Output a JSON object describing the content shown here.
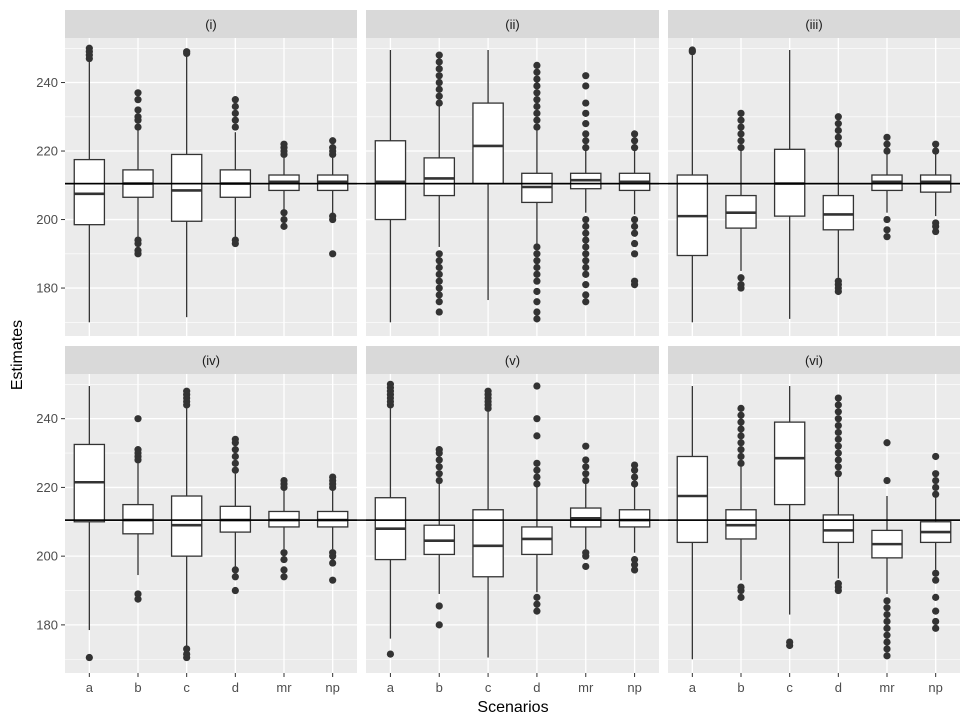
{
  "chart_data": {
    "type": "boxplot",
    "xlabel": "Scenarios",
    "ylabel": "Estimates",
    "categories": [
      "a",
      "b",
      "c",
      "d",
      "mr",
      "np"
    ],
    "ylim": [
      166,
      253
    ],
    "yticks": [
      180,
      200,
      220,
      240
    ],
    "reference_line": 210.5,
    "colors": {
      "panel_bg": "#EBEBEB",
      "grid": "#FFFFFF",
      "strip_bg": "#D9D9D9",
      "box_fill": "#FFFFFF",
      "box_line": "#333333",
      "reference": "#000000"
    },
    "panels": [
      {
        "label": "(i)",
        "boxes": [
          {
            "category": "a",
            "q1": 198.5,
            "median": 207.5,
            "q3": 217.5,
            "whisker_low": 170,
            "whisker_high": 246,
            "outliers": [
              247,
              248,
              249,
              250
            ]
          },
          {
            "category": "b",
            "q1": 206.5,
            "median": 210.5,
            "q3": 214.5,
            "whisker_low": 195,
            "whisker_high": 226,
            "outliers": [
              190,
              191,
              193,
              194,
              227,
              229,
              230,
              232,
              235,
              237
            ]
          },
          {
            "category": "c",
            "q1": 199.5,
            "median": 208.5,
            "q3": 219,
            "whisker_low": 171.5,
            "whisker_high": 248,
            "outliers": [
              248.5,
              249
            ]
          },
          {
            "category": "d",
            "q1": 206.5,
            "median": 210.5,
            "q3": 214.5,
            "whisker_low": 195,
            "whisker_high": 225.5,
            "outliers": [
              193,
              194,
              227,
              229,
              231,
              233,
              235
            ]
          },
          {
            "category": "mr",
            "q1": 208.5,
            "median": 211,
            "q3": 213,
            "whisker_low": 202,
            "whisker_high": 218,
            "outliers": [
              198,
              200,
              202,
              219,
              220,
              221,
              222
            ]
          },
          {
            "category": "np",
            "q1": 208.5,
            "median": 211,
            "q3": 213,
            "whisker_low": 202,
            "whisker_high": 218,
            "outliers": [
              190,
              200,
              201,
              219,
              220,
              221,
              223
            ]
          }
        ]
      },
      {
        "label": "(ii)",
        "boxes": [
          {
            "category": "a",
            "q1": 200,
            "median": 211,
            "q3": 223,
            "whisker_low": 170,
            "whisker_high": 249.5,
            "outliers": []
          },
          {
            "category": "b",
            "q1": 207,
            "median": 212,
            "q3": 218,
            "whisker_low": 192,
            "whisker_high": 233,
            "outliers": [
              173,
              176,
              178,
              180,
              182,
              184,
              186,
              188,
              190,
              234,
              236,
              238,
              240,
              242,
              244,
              246,
              248
            ]
          },
          {
            "category": "c",
            "q1": 210.5,
            "median": 221.5,
            "q3": 234,
            "whisker_low": 176.5,
            "whisker_high": 249.5,
            "outliers": []
          },
          {
            "category": "d",
            "q1": 205,
            "median": 209.5,
            "q3": 213.5,
            "whisker_low": 193,
            "whisker_high": 226,
            "outliers": [
              171,
              173,
              176,
              179,
              182,
              184,
              186,
              188,
              190,
              192,
              227,
              229,
              231,
              233,
              235,
              237,
              239,
              241,
              243,
              245
            ]
          },
          {
            "category": "mr",
            "q1": 209,
            "median": 211.5,
            "q3": 213.5,
            "whisker_low": 202,
            "whisker_high": 220.5,
            "outliers": [
              176,
              178,
              181,
              184,
              186,
              188,
              190,
              192,
              194,
              196,
              198,
              200,
              221,
              223,
              225,
              228,
              231,
              234,
              239,
              242
            ]
          },
          {
            "category": "np",
            "q1": 208.5,
            "median": 211,
            "q3": 213.5,
            "whisker_low": 201.5,
            "whisker_high": 220,
            "outliers": [
              181,
              182,
              190,
              193,
              196,
              198,
              200,
              221,
              223,
              225
            ]
          }
        ]
      },
      {
        "label": "(iii)",
        "boxes": [
          {
            "category": "a",
            "q1": 189.5,
            "median": 201,
            "q3": 213,
            "whisker_low": 170,
            "whisker_high": 248,
            "outliers": [
              249,
              249.5
            ]
          },
          {
            "category": "b",
            "q1": 197.5,
            "median": 202,
            "q3": 207,
            "whisker_low": 185,
            "whisker_high": 220,
            "outliers": [
              180,
              181,
              183,
              221,
              223,
              225,
              227,
              229,
              231
            ]
          },
          {
            "category": "c",
            "q1": 201,
            "median": 210.5,
            "q3": 220.5,
            "whisker_low": 171,
            "whisker_high": 249.5,
            "outliers": []
          },
          {
            "category": "d",
            "q1": 197,
            "median": 201.5,
            "q3": 207,
            "whisker_low": 183,
            "whisker_high": 221,
            "outliers": [
              179,
              180,
              181,
              182,
              222,
              224,
              226,
              228,
              230
            ]
          },
          {
            "category": "mr",
            "q1": 208.5,
            "median": 211,
            "q3": 213,
            "whisker_low": 202,
            "whisker_high": 219.5,
            "outliers": [
              195,
              197,
              200,
              220,
              222,
              224
            ]
          },
          {
            "category": "np",
            "q1": 208,
            "median": 211,
            "q3": 213,
            "whisker_low": 201,
            "whisker_high": 219.5,
            "outliers": [
              196.5,
              198,
              199,
              220,
              222
            ]
          }
        ]
      },
      {
        "label": "(iv)",
        "boxes": [
          {
            "category": "a",
            "q1": 210,
            "median": 221.5,
            "q3": 232.5,
            "whisker_low": 178.5,
            "whisker_high": 249.5,
            "outliers": [
              170.5
            ]
          },
          {
            "category": "b",
            "q1": 206.5,
            "median": 210.5,
            "q3": 215,
            "whisker_low": 194.5,
            "whisker_high": 227,
            "outliers": [
              187.5,
              189,
              228,
              229,
              230,
              231,
              240
            ]
          },
          {
            "category": "c",
            "q1": 200,
            "median": 209,
            "q3": 217.5,
            "whisker_low": 174,
            "whisker_high": 243,
            "outliers": [
              170.5,
              171.5,
              173,
              244,
              245,
              246,
              247,
              248
            ]
          },
          {
            "category": "d",
            "q1": 207,
            "median": 210.5,
            "q3": 214.5,
            "whisker_low": 197,
            "whisker_high": 224,
            "outliers": [
              190,
              194,
              196,
              225,
              227,
              229,
              231,
              233,
              234
            ]
          },
          {
            "category": "mr",
            "q1": 208.5,
            "median": 210.5,
            "q3": 213,
            "whisker_low": 202,
            "whisker_high": 219.5,
            "outliers": [
              194,
              196,
              199,
              201,
              220,
              221,
              222
            ]
          },
          {
            "category": "np",
            "q1": 208.5,
            "median": 210.5,
            "q3": 213,
            "whisker_low": 202,
            "whisker_high": 219.5,
            "outliers": [
              193,
              198,
              200,
              201,
              220,
              221,
              222,
              223
            ]
          }
        ]
      },
      {
        "label": "(v)",
        "boxes": [
          {
            "category": "a",
            "q1": 199,
            "median": 208,
            "q3": 217,
            "whisker_low": 176,
            "whisker_high": 243,
            "outliers": [
              171.5,
              244,
              245,
              246,
              247,
              248,
              249,
              250
            ]
          },
          {
            "category": "b",
            "q1": 200.5,
            "median": 204.5,
            "q3": 209,
            "whisker_low": 189,
            "whisker_high": 221,
            "outliers": [
              180,
              185.5,
              222,
              224,
              226,
              228,
              230,
              231
            ]
          },
          {
            "category": "c",
            "q1": 194,
            "median": 203,
            "q3": 213.5,
            "whisker_low": 170.5,
            "whisker_high": 242,
            "outliers": [
              243,
              244,
              245,
              246,
              247,
              248
            ]
          },
          {
            "category": "d",
            "q1": 200.5,
            "median": 205,
            "q3": 208.5,
            "whisker_low": 189.5,
            "whisker_high": 220,
            "outliers": [
              184,
              186,
              188,
              221,
              223,
              225,
              227,
              235,
              240,
              249.5
            ]
          },
          {
            "category": "mr",
            "q1": 208.5,
            "median": 211,
            "q3": 214,
            "whisker_low": 202,
            "whisker_high": 221,
            "outliers": [
              197,
              200,
              201,
              222,
              224,
              226,
              228,
              232
            ]
          },
          {
            "category": "np",
            "q1": 208.5,
            "median": 210.5,
            "q3": 213.5,
            "whisker_low": 201,
            "whisker_high": 220.5,
            "outliers": [
              196,
              197.5,
              199,
              221,
              223,
              225,
              226.5
            ]
          }
        ]
      },
      {
        "label": "(vi)",
        "boxes": [
          {
            "category": "a",
            "q1": 204,
            "median": 217.5,
            "q3": 229,
            "whisker_low": 170,
            "whisker_high": 249.5,
            "outliers": []
          },
          {
            "category": "b",
            "q1": 205,
            "median": 209,
            "q3": 213.5,
            "whisker_low": 193,
            "whisker_high": 226,
            "outliers": [
              188,
              190,
              191,
              227,
              229,
              231,
              233,
              235,
              237,
              239,
              241,
              243
            ]
          },
          {
            "category": "c",
            "q1": 215,
            "median": 228.5,
            "q3": 239,
            "whisker_low": 183,
            "whisker_high": 249.5,
            "outliers": [
              174,
              175
            ]
          },
          {
            "category": "d",
            "q1": 204,
            "median": 207.5,
            "q3": 212,
            "whisker_low": 193.5,
            "whisker_high": 223,
            "outliers": [
              190,
              191,
              192,
              224,
              226,
              228,
              230,
              232,
              234,
              236,
              238,
              240,
              242,
              244,
              246
            ]
          },
          {
            "category": "mr",
            "q1": 199.5,
            "median": 203.5,
            "q3": 207.5,
            "whisker_low": 189,
            "whisker_high": 217.5,
            "outliers": [
              171,
              173,
              175,
              177,
              179,
              181,
              183,
              185,
              187,
              222,
              233
            ]
          },
          {
            "category": "np",
            "q1": 204,
            "median": 207,
            "q3": 210,
            "whisker_low": 196,
            "whisker_high": 217.5,
            "outliers": [
              179,
              181,
              184,
              188,
              193,
              195,
              218,
              220,
              222,
              224,
              229
            ]
          }
        ]
      }
    ]
  }
}
